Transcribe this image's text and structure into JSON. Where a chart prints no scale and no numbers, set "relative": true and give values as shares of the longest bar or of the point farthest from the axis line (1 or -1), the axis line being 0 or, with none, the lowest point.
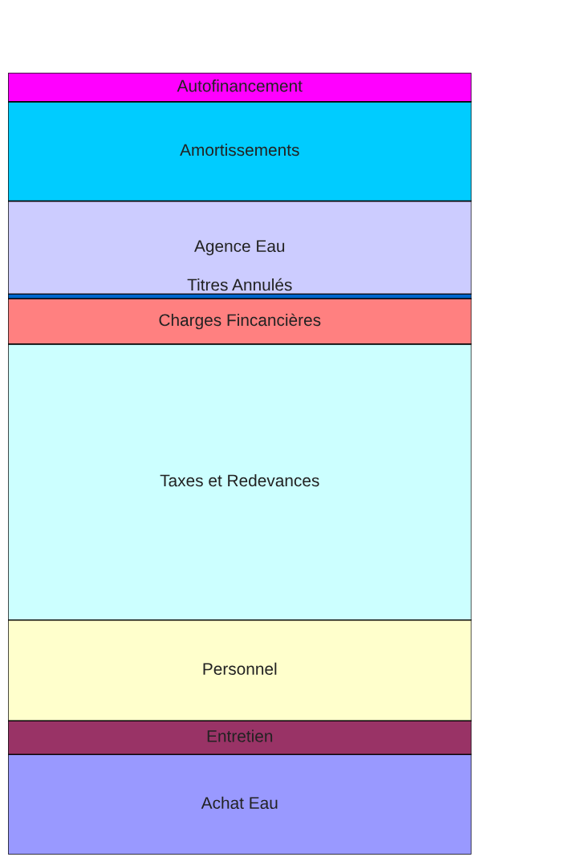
{
  "chart_data": {
    "type": "bar",
    "stacked": true,
    "relative": true,
    "categories": [
      null
    ],
    "data_labels": false,
    "legend": false,
    "series": [
      {
        "name": "Achat Eau",
        "color": "#9999ff",
        "values": [
          0.128
        ]
      },
      {
        "name": "Entretien",
        "color": "#993366",
        "values": [
          0.043
        ]
      },
      {
        "name": "Personnel",
        "color": "#ffffcc",
        "values": [
          0.129
        ]
      },
      {
        "name": "Taxes et Redevances",
        "color": "#ccffff",
        "values": [
          0.353
        ]
      },
      {
        "name": "Charges Fincancières",
        "color": "#ff8080",
        "values": [
          0.058
        ]
      },
      {
        "name": "Titres Annulés",
        "color": "#0066cc",
        "values": [
          0.006
        ]
      },
      {
        "name": "Agence Eau",
        "color": "#ccccff",
        "values": [
          0.119
        ]
      },
      {
        "name": "Amortissements",
        "color": "#00ccff",
        "values": [
          0.127
        ]
      },
      {
        "name": "Autofinancement",
        "color": "#ff00ff",
        "values": [
          0.037
        ]
      }
    ]
  }
}
